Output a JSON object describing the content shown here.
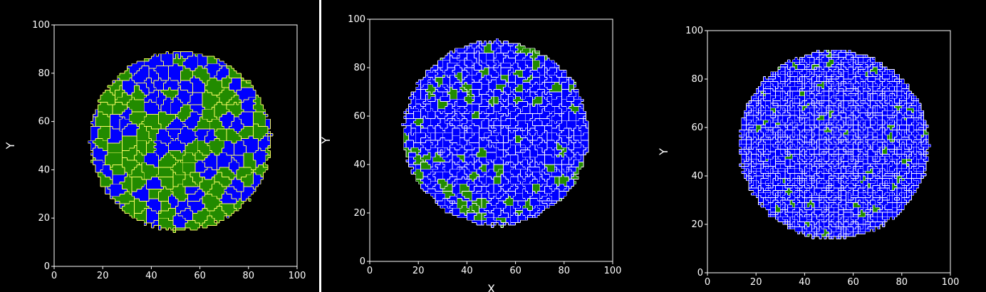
{
  "colors": {
    "background": "#000000",
    "grain_primary": "#0000ff",
    "grain_secondary": "#228b00",
    "grain_boundary": "#ffff66",
    "axes": "#ffffff"
  },
  "chart_data": [
    {
      "type": "heatmap",
      "title": "",
      "xlabel": "",
      "ylabel": "Y",
      "xlim": [
        0,
        100
      ],
      "ylim": [
        0,
        100
      ],
      "xticks": [
        0,
        20,
        40,
        60,
        80,
        100
      ],
      "yticks": [
        0,
        20,
        40,
        60,
        80,
        100
      ],
      "grid": false,
      "domain_shape": "disc",
      "domain_center": [
        52,
        52
      ],
      "domain_radius": 37,
      "grain_size": 5,
      "fraction_green": 0.45,
      "boundary_roughness": "low",
      "seed": 7
    },
    {
      "type": "heatmap",
      "title": "",
      "xlabel": "X",
      "ylabel": "Y",
      "xlim": [
        0,
        100
      ],
      "ylim": [
        0,
        100
      ],
      "xticks": [
        0,
        20,
        40,
        60,
        80,
        100
      ],
      "yticks": [
        0,
        20,
        40,
        60,
        80,
        100
      ],
      "grid": false,
      "domain_shape": "disc",
      "domain_center": [
        52,
        53
      ],
      "domain_radius": 38,
      "grain_size": 3,
      "fraction_green": 0.16,
      "boundary_roughness": "medium",
      "seed": 19
    },
    {
      "type": "heatmap",
      "title": "",
      "xlabel": "",
      "ylabel": "Y",
      "xlim": [
        0,
        100
      ],
      "ylim": [
        0,
        100
      ],
      "xticks": [
        0,
        20,
        40,
        60,
        80,
        100
      ],
      "yticks": [
        0,
        20,
        40,
        60,
        80,
        100
      ],
      "grid": false,
      "domain_shape": "disc",
      "domain_center": [
        52,
        53
      ],
      "domain_radius": 39,
      "grain_size": 2,
      "fraction_green": 0.04,
      "boundary_roughness": "high",
      "seed": 31
    }
  ]
}
